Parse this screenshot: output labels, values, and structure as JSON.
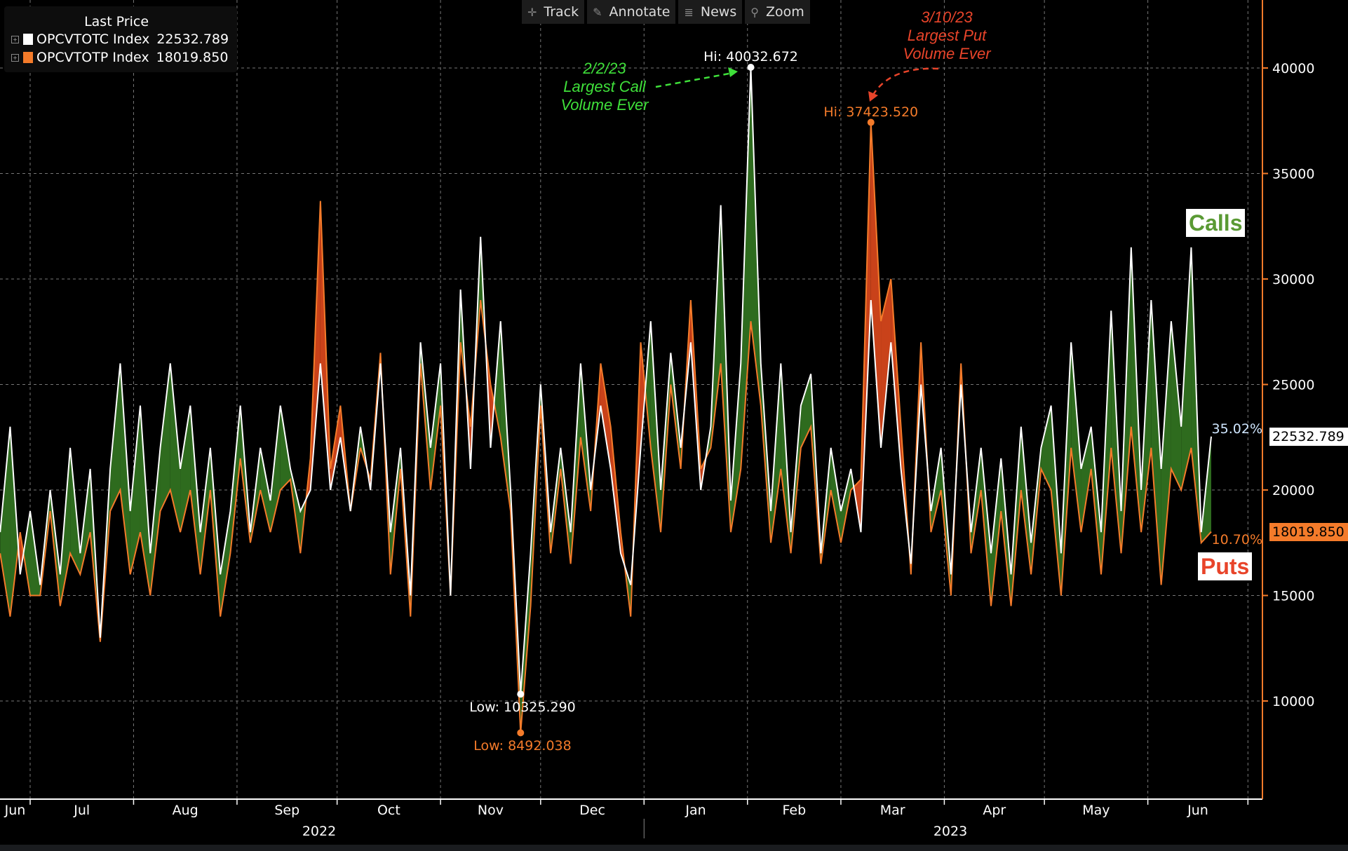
{
  "toolbar": {
    "items": [
      {
        "label": "Track",
        "icon": "crosshair-icon"
      },
      {
        "label": "Annotate",
        "icon": "pencil-icon"
      },
      {
        "label": "News",
        "icon": "news-icon"
      },
      {
        "label": "Zoom",
        "icon": "magnifier-icon"
      }
    ]
  },
  "legend": {
    "title": "Last Price",
    "items": [
      {
        "label": "OPCVTOTC Index",
        "value": "22532.789",
        "color": "#ffffff"
      },
      {
        "label": "OPCVTOTP Index",
        "value": "18019.850",
        "color": "#f47b2a"
      }
    ]
  },
  "colors": {
    "calls_fill": "#2e6b1e",
    "puts_fill": "#c9421a",
    "calls_line": "#ffffff",
    "puts_line": "#f47b2a",
    "annotation_green": "#3fe03a",
    "annotation_red": "#e8442a"
  },
  "chart_data": {
    "type": "area",
    "start_date": "2022-06-22",
    "step_days": 3,
    "ylim": [
      5000,
      43500
    ],
    "yticks": [
      10000,
      15000,
      20000,
      25000,
      30000,
      35000,
      40000
    ],
    "xticks": [
      "Jun",
      "Jul",
      "Aug",
      "Sep",
      "Oct",
      "Nov",
      "Dec",
      "Jan",
      "Feb",
      "Mar",
      "Apr",
      "May",
      "Jun"
    ],
    "years": [
      "2022",
      "2023"
    ],
    "grid": true,
    "series": [
      {
        "name": "OPCVTOTC Index",
        "values": [
          18000,
          23000,
          16000,
          19000,
          15500,
          20000,
          16000,
          22000,
          17000,
          21000,
          13000,
          21000,
          26000,
          19000,
          24000,
          17000,
          22000,
          26000,
          21000,
          24000,
          18000,
          22000,
          16000,
          19000,
          24000,
          18000,
          22000,
          19500,
          24000,
          21000,
          19000,
          20000,
          26000,
          20000,
          22500,
          19000,
          23000,
          20000,
          26000,
          18000,
          22000,
          15000,
          27000,
          22000,
          26000,
          15000,
          29500,
          21000,
          32000,
          22000,
          28000,
          20000,
          10325.29,
          17000,
          25000,
          18000,
          22000,
          18000,
          26000,
          20000,
          24000,
          21000,
          17000,
          15500,
          22000,
          28000,
          20000,
          26500,
          22000,
          27000,
          20000,
          23000,
          33500,
          19500,
          26000,
          40032.672,
          26000,
          19000,
          26000,
          18000,
          24000,
          25500,
          17000,
          22000,
          19000,
          21000,
          18000,
          29000,
          22000,
          27000,
          21000,
          16500,
          25000,
          19000,
          22000,
          16000,
          25000,
          18000,
          22000,
          17000,
          21500,
          16000,
          23000,
          17500,
          22000,
          24000,
          17000,
          27000,
          21000,
          23000,
          18000,
          28500,
          19000,
          31500,
          20000,
          29000,
          21000,
          28000,
          23000,
          31500,
          18000,
          22532.789
        ]
      },
      {
        "name": "OPCVTOTP Index",
        "values": [
          17000,
          14000,
          18000,
          15000,
          15000,
          19000,
          14500,
          17000,
          16000,
          18000,
          12800,
          19000,
          20000,
          16000,
          18000,
          15000,
          19000,
          20000,
          18000,
          20000,
          16000,
          20000,
          14000,
          17000,
          21500,
          17500,
          20000,
          18000,
          20000,
          20500,
          17000,
          21500,
          33700,
          21000,
          24000,
          19000,
          22000,
          20500,
          26500,
          16000,
          21000,
          14000,
          26000,
          20000,
          24000,
          15000,
          27000,
          23000,
          29000,
          25000,
          22500,
          19000,
          8492.038,
          14500,
          24000,
          17000,
          21000,
          16500,
          22500,
          19000,
          26000,
          23000,
          18000,
          14000,
          27000,
          22000,
          18000,
          25000,
          21000,
          29000,
          21000,
          22000,
          26000,
          18000,
          21000,
          28000,
          24000,
          17500,
          21000,
          17000,
          22000,
          23000,
          16500,
          20000,
          17500,
          20000,
          20500,
          37423.52,
          28000,
          30000,
          23000,
          16000,
          27000,
          18000,
          20000,
          15000,
          26000,
          17000,
          20000,
          14500,
          19000,
          14500,
          20000,
          16000,
          21000,
          20000,
          15000,
          22000,
          18000,
          21000,
          16000,
          22000,
          17000,
          23000,
          18000,
          22000,
          15500,
          21000,
          20000,
          22000,
          17500,
          18019.85
        ]
      }
    ],
    "annotations": {
      "call_high": {
        "label": "Hi: 40032.672",
        "value": 40032.672,
        "index": 75
      },
      "put_high": {
        "label": "Hi: 37423.520",
        "value": 37423.52,
        "index": 87
      },
      "call_low": {
        "label": "Low: 10325.290",
        "value": 10325.29,
        "index": 52
      },
      "put_low": {
        "label": "Low: 8492.038",
        "value": 8492.038,
        "index": 52
      },
      "call_note": [
        "2/2/23",
        "Largest Call",
        "Volume Ever"
      ],
      "put_note": [
        "3/10/23",
        "Largest Put",
        "Volume Ever"
      ],
      "calls_box": "Calls",
      "puts_box": "Puts",
      "calls_pct": "35.02%",
      "puts_pct": "10.70%",
      "calls_last": "22532.789",
      "puts_last": "18019.850"
    }
  }
}
